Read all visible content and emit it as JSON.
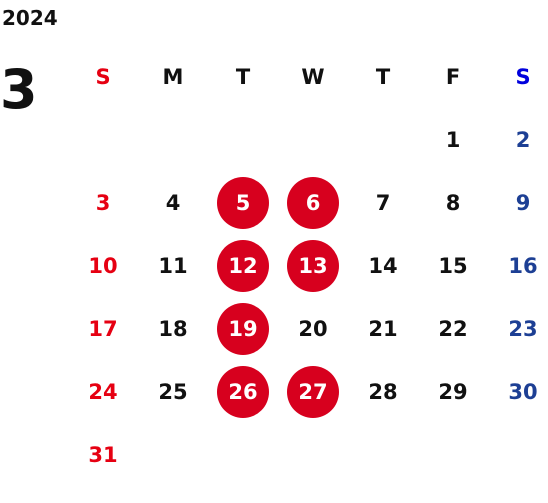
{
  "year": "2024",
  "month": "3",
  "colors": {
    "sunday": "#e60012",
    "saturday": "#1d3f94",
    "weekday": "#111111",
    "highlight_bg": "#d7001e",
    "highlight_text": "#ffffff"
  },
  "weekdays": [
    "S",
    "M",
    "T",
    "W",
    "T",
    "F",
    "S"
  ],
  "first_day_offset": 5,
  "days": [
    "1",
    "2",
    "3",
    "4",
    "5",
    "6",
    "7",
    "8",
    "9",
    "10",
    "11",
    "12",
    "13",
    "14",
    "15",
    "16",
    "17",
    "18",
    "19",
    "20",
    "21",
    "22",
    "23",
    "24",
    "25",
    "26",
    "27",
    "28",
    "29",
    "30",
    "31"
  ],
  "highlighted_days": [
    "5",
    "6",
    "12",
    "13",
    "19",
    "26",
    "27"
  ]
}
